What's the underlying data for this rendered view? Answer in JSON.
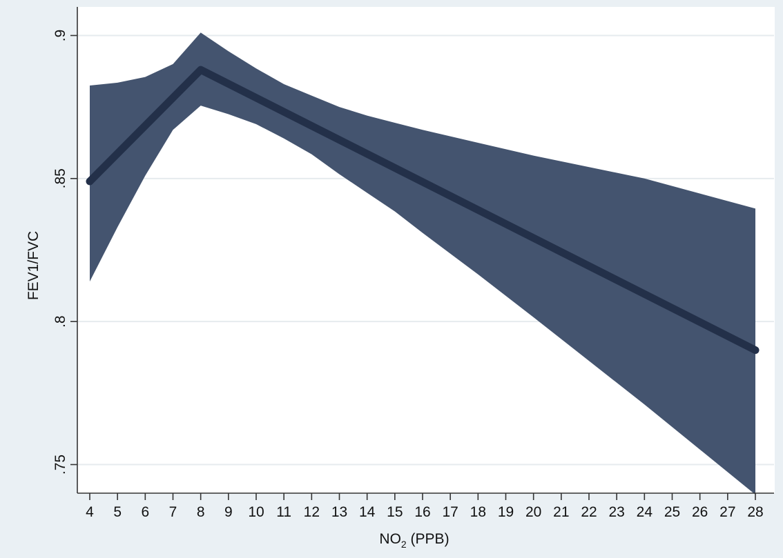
{
  "chart_data": {
    "type": "area",
    "xlabel_main": "NO",
    "xlabel_sub": "2",
    "xlabel_rest": " (PPB)",
    "ylabel": "FEV1/FVC",
    "x_ticks": [
      4,
      5,
      6,
      7,
      8,
      9,
      10,
      11,
      12,
      13,
      14,
      15,
      16,
      17,
      18,
      19,
      20,
      21,
      22,
      23,
      24,
      25,
      26,
      27,
      28
    ],
    "y_ticks": [
      {
        "value": 0.75,
        "label": ".75"
      },
      {
        "value": 0.8,
        "label": ".8"
      },
      {
        "value": 0.85,
        "label": ".85"
      },
      {
        "value": 0.9,
        "label": ".9"
      }
    ],
    "xlim": [
      4,
      28
    ],
    "ylim": [
      0.74,
      0.91
    ],
    "grid": true,
    "colors": {
      "band": "#44546f",
      "line": "#233049",
      "frame": "#eaf0f4"
    },
    "series": [
      {
        "kind": "fit",
        "x": [
          4,
          8,
          28
        ],
        "y": [
          0.849,
          0.888,
          0.79
        ]
      },
      {
        "kind": "ci-band",
        "x": [
          4,
          5,
          6,
          7,
          8,
          9,
          10,
          11,
          12,
          13,
          14,
          15,
          16,
          18,
          20,
          24,
          28
        ],
        "upper": [
          0.8825,
          0.8835,
          0.8855,
          0.89,
          0.901,
          0.8945,
          0.8885,
          0.883,
          0.879,
          0.875,
          0.872,
          0.8695,
          0.867,
          0.8625,
          0.858,
          0.85,
          0.8395
        ],
        "lower": [
          0.814,
          0.833,
          0.851,
          0.867,
          0.8755,
          0.8725,
          0.869,
          0.864,
          0.8585,
          0.8515,
          0.845,
          0.8385,
          0.831,
          0.8165,
          0.8015,
          0.771,
          0.7395
        ]
      }
    ]
  }
}
